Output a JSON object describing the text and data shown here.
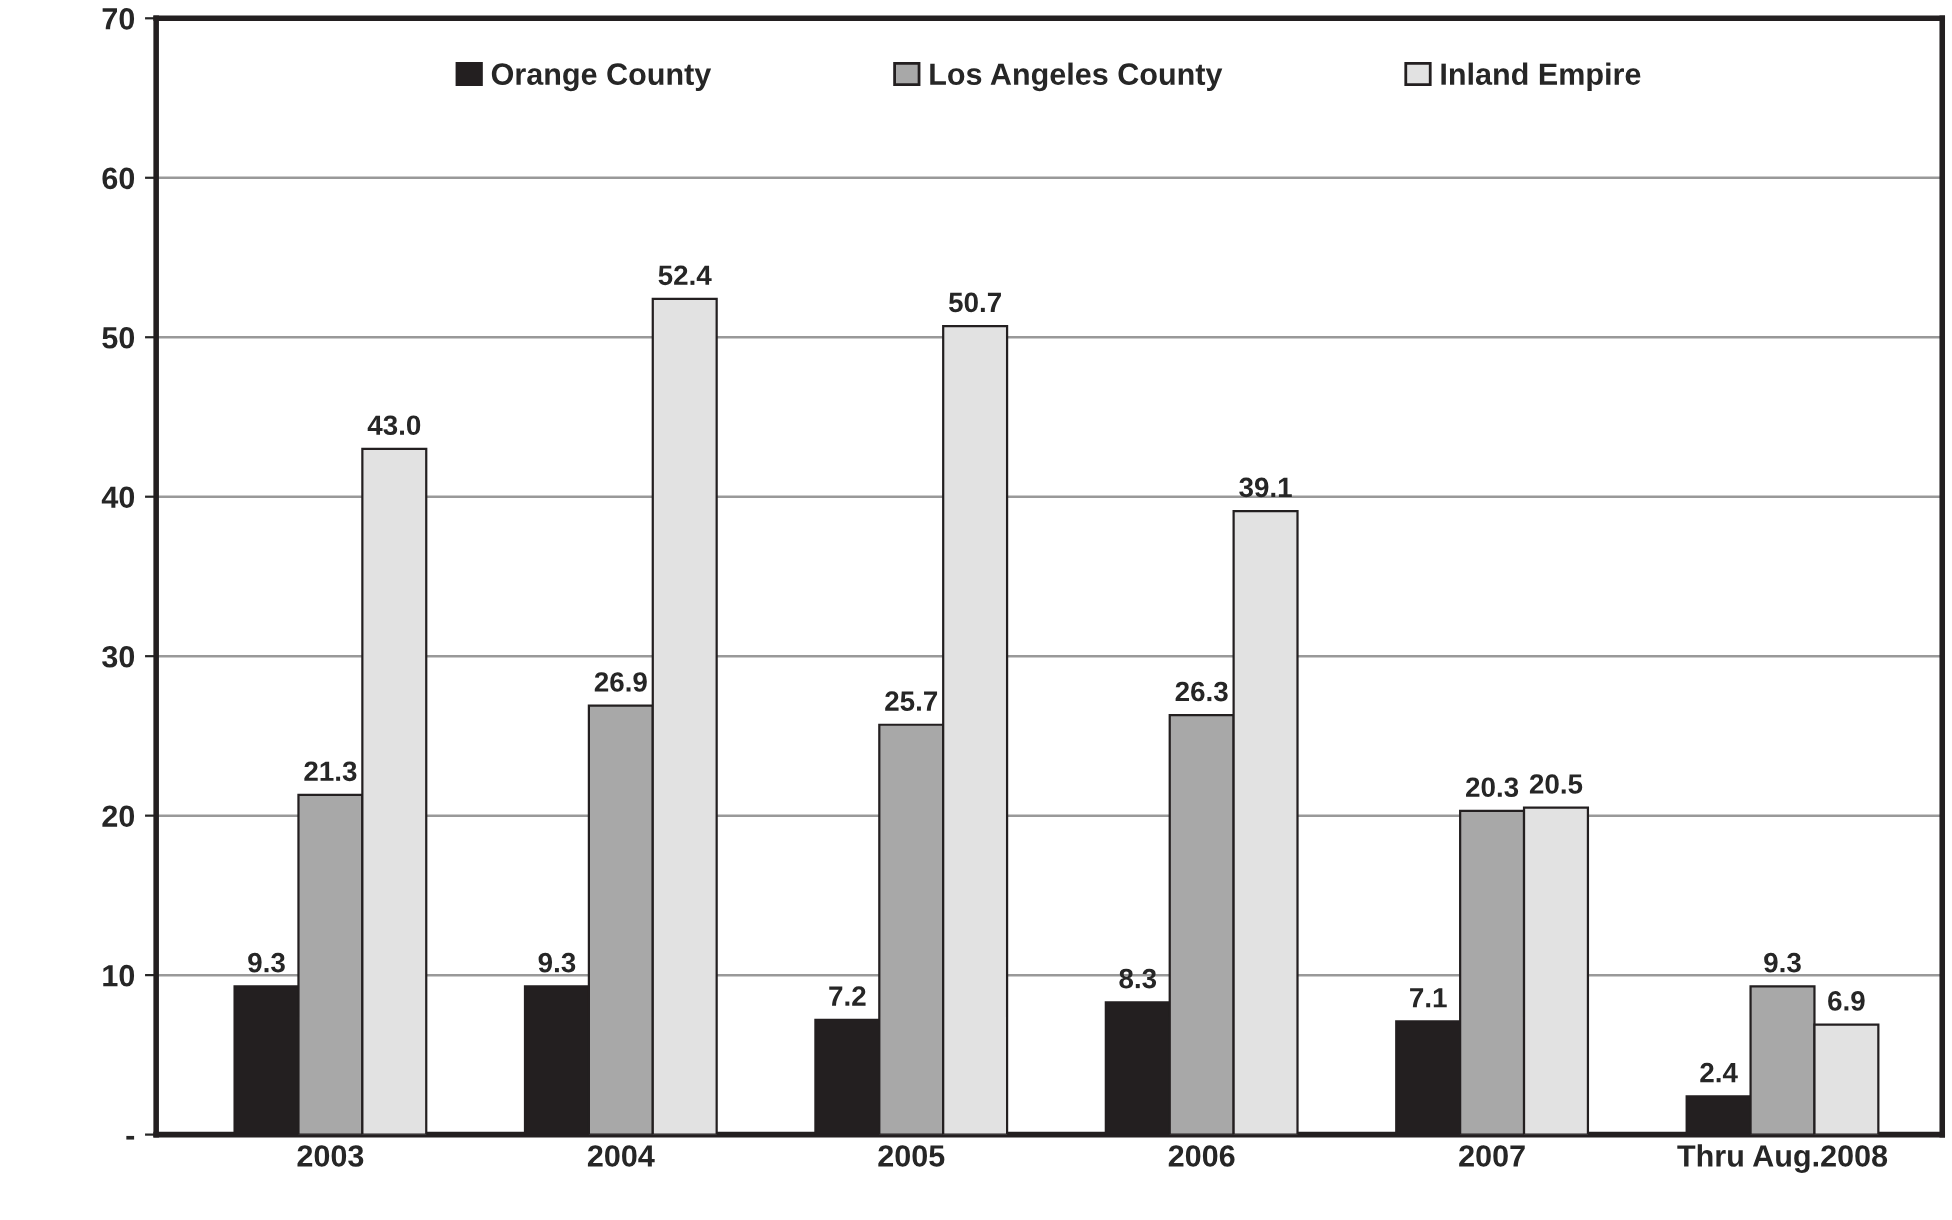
{
  "chart_data": {
    "type": "bar",
    "categories": [
      "2003",
      "2004",
      "2005",
      "2006",
      "2007",
      "Thru Aug.2008"
    ],
    "series": [
      {
        "name": "Orange County",
        "color": "#231f20",
        "values": [
          9.3,
          9.3,
          7.2,
          8.3,
          7.1,
          2.4
        ],
        "value_labels": [
          "9.3",
          "9.3",
          "7.2",
          "8.3",
          "7.1",
          "2.4"
        ]
      },
      {
        "name": "Los Angeles County",
        "color": "#a8a8a8",
        "values": [
          21.3,
          26.9,
          25.7,
          26.3,
          20.3,
          9.3
        ],
        "value_labels": [
          "21.3",
          "26.9",
          "25.7",
          "26.3",
          "20.3",
          "9.3"
        ]
      },
      {
        "name": "Inland Empire",
        "color": "#e2e2e2",
        "values": [
          43.0,
          52.4,
          50.7,
          39.1,
          20.5,
          6.9
        ],
        "value_labels": [
          "43.0",
          "52.4",
          "50.7",
          "39.1",
          "20.5",
          "6.9"
        ]
      }
    ],
    "ylim": [
      0,
      70
    ],
    "yticks": [
      {
        "value": 0,
        "label": "-"
      },
      10,
      20,
      30,
      40,
      50,
      60,
      70
    ],
    "grid": "y",
    "legend": "top"
  }
}
